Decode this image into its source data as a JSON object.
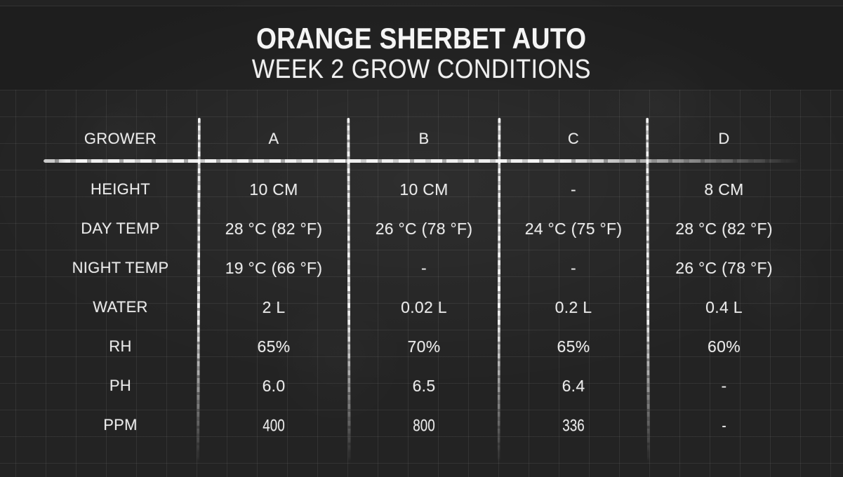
{
  "title": "ORANGE SHERBET AUTO",
  "subtitle": "WEEK 2 GROW CONDITIONS",
  "theme": {
    "background": "#232323",
    "chalk_text": "#ececec",
    "grid_line": "rgba(255,255,255,0.07)"
  },
  "chart_data": {
    "type": "table",
    "title": "ORANGE SHERBET AUTO",
    "subtitle": "WEEK 2 GROW CONDITIONS",
    "headers": [
      "GROWER",
      "A",
      "B",
      "C",
      "D"
    ],
    "rows": [
      [
        "HEIGHT",
        "10 CM",
        "10 CM",
        "-",
        "8 CM"
      ],
      [
        "DAY TEMP",
        "28 °C (82 °F)",
        "26 °C (78 °F)",
        "24 °C (75 °F)",
        "28 °C (82 °F)"
      ],
      [
        "NIGHT TEMP",
        "19 °C (66 °F)",
        "-",
        "-",
        "26 °C (78 °F)"
      ],
      [
        "WATER",
        "2 L",
        "0.02 L",
        "0.2 L",
        "0.4 L"
      ],
      [
        "RH",
        "65%",
        "70%",
        "65%",
        "60%"
      ],
      [
        "PH",
        "6.0",
        "6.5",
        "6.4",
        "-"
      ],
      [
        "PPM",
        "400",
        "800",
        "336",
        "-"
      ]
    ],
    "layout": {
      "grid": "faint graph-paper grid under table area",
      "style": "white chalk on dark chalkboard",
      "column_dividers": 4,
      "header_underline": true
    }
  }
}
